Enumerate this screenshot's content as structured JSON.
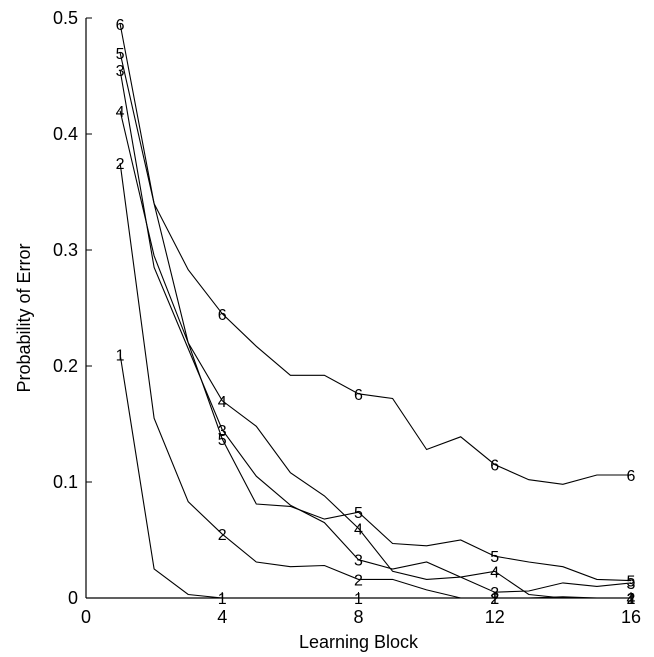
{
  "chart_data": {
    "type": "line",
    "xlabel": "Learning Block",
    "ylabel": "Probability of Error",
    "xlim": [
      0,
      16
    ],
    "ylim": [
      0,
      0.5
    ],
    "xticks": [
      0,
      4,
      8,
      12,
      16
    ],
    "xtick_labels": [
      "0",
      "4",
      "8",
      "12",
      "16"
    ],
    "yticks": [
      0,
      0.1,
      0.2,
      0.3,
      0.4,
      0.5
    ],
    "ytick_labels": [
      "0",
      "0.1",
      "0.2",
      "0.3",
      "0.4",
      "0.5"
    ],
    "grid": false,
    "x": [
      1,
      2,
      3,
      4,
      5,
      6,
      7,
      8,
      9,
      10,
      11,
      12,
      13,
      14,
      15,
      16
    ],
    "label_x": [
      1,
      4,
      8,
      12,
      16
    ],
    "series": [
      {
        "name": "1",
        "values": [
          0.21,
          0.025,
          0.003,
          0.0,
          0.0,
          0.0,
          0.0,
          0.0,
          0.0,
          0.0,
          0.0,
          0.0,
          0.0,
          0.0,
          0.0,
          0.0
        ]
      },
      {
        "name": "2",
        "values": [
          0.375,
          0.155,
          0.083,
          0.055,
          0.031,
          0.027,
          0.028,
          0.016,
          0.016,
          0.007,
          0.0,
          0.0,
          0.0,
          0.001,
          0.0,
          0.0
        ]
      },
      {
        "name": "3",
        "values": [
          0.455,
          0.285,
          0.215,
          0.145,
          0.105,
          0.08,
          0.065,
          0.033,
          0.025,
          0.031,
          0.018,
          0.005,
          0.006,
          0.013,
          0.01,
          0.013
        ]
      },
      {
        "name": "4",
        "values": [
          0.42,
          0.295,
          0.22,
          0.17,
          0.148,
          0.108,
          0.088,
          0.06,
          0.023,
          0.016,
          0.018,
          0.023,
          0.003,
          0.0,
          0.0,
          0.0
        ]
      },
      {
        "name": "5",
        "values": [
          0.47,
          0.34,
          0.22,
          0.137,
          0.081,
          0.079,
          0.068,
          0.074,
          0.047,
          0.045,
          0.05,
          0.036,
          0.031,
          0.027,
          0.016,
          0.015
        ]
      },
      {
        "name": "6",
        "values": [
          0.495,
          0.34,
          0.283,
          0.245,
          0.217,
          0.192,
          0.192,
          0.176,
          0.172,
          0.128,
          0.139,
          0.115,
          0.102,
          0.098,
          0.106,
          0.106
        ]
      }
    ]
  }
}
